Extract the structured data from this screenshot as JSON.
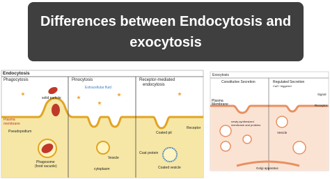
{
  "header": {
    "title": "Differences between Endocytosis and exocytosis"
  },
  "endocytosis": {
    "title": "Endocytosis",
    "phagocytosis": {
      "title": "Phagocytosis",
      "solid_particle": "solid particle",
      "plasma_membrane": [
        "Plasma",
        "membrane"
      ],
      "pseudopodium": "Pseudopodium",
      "phagosome": [
        "Phagosome",
        "(food vacuole)"
      ]
    },
    "pinocytosis": {
      "title": "Pinocytosis",
      "extracellular_fluid": "Extracellular fluid",
      "vesicle": "Vesicle",
      "cytoplasm": "cytoplasm"
    },
    "receptor_mediated": {
      "title": [
        "Receptor-mediated",
        "endocytosis"
      ],
      "coated_pit": "Coated pit",
      "receptor": "Receptor",
      "coat_protein": "Coat protein",
      "coated_vesicle": "Coated vesicle"
    }
  },
  "exocytosis": {
    "title": "Exocytosis",
    "constitutive": "Constitutive Secretion",
    "regulated": [
      "Regulated Secretion",
      "Ca2+ triggered"
    ],
    "signal": "Signal",
    "plasma_membrane": [
      "Plasma",
      "Membrane"
    ],
    "receptor": "Receptor",
    "newly_synthesized": [
      "newly-synthesized",
      "membrane and proteins"
    ],
    "vesicle": "Vesicle",
    "golgi": "Golgi apparatus"
  }
}
